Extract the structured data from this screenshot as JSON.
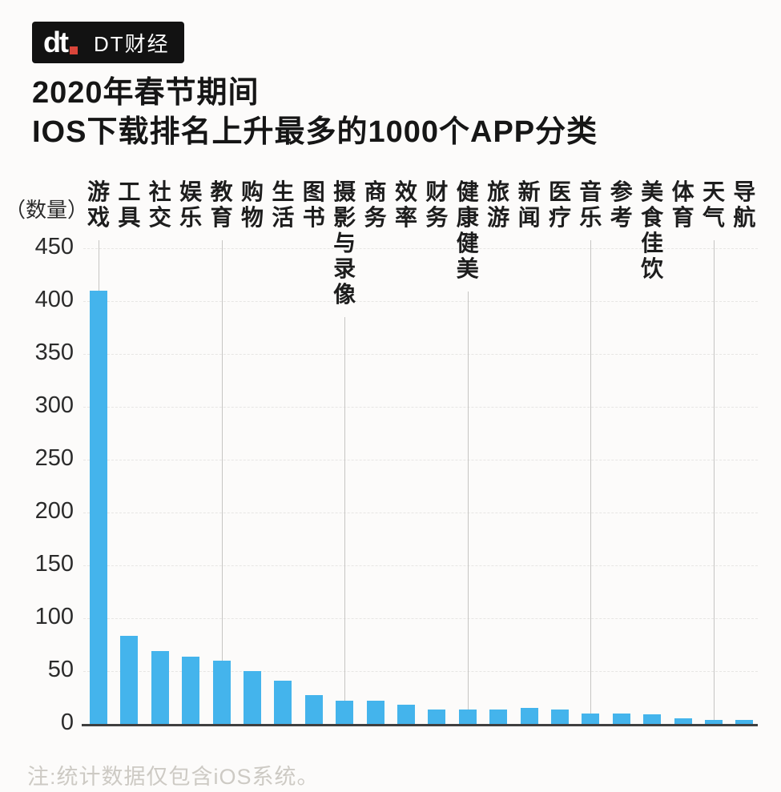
{
  "header": {
    "logo_mark_text": "dt",
    "logo_text": "DT财经"
  },
  "title": {
    "line1": "2020年春节期间",
    "line2": "IOS下载排名上升最多的1000个APP分类"
  },
  "chart_data": {
    "type": "bar",
    "title": "2020年春节期间 IOS下载排名上升最多的1000个APP分类",
    "unit_label": "（数量）",
    "categories": [
      "游戏",
      "工具",
      "社交",
      "娱乐",
      "教育",
      "购物",
      "生活",
      "图书",
      "摄影与录像",
      "商务",
      "效率",
      "财务",
      "健康健美",
      "旅游",
      "新闻",
      "医疗",
      "音乐",
      "参考",
      "美食佳饮",
      "体育",
      "天气",
      "导航"
    ],
    "values": [
      410,
      83,
      69,
      64,
      60,
      50,
      41,
      27,
      22,
      22,
      18,
      14,
      14,
      14,
      15,
      14,
      10,
      10,
      9,
      5,
      4,
      4
    ],
    "xlabel": "",
    "ylabel": "数量",
    "ylim": [
      0,
      450
    ],
    "yticks": [
      450,
      400,
      350,
      300,
      250,
      200,
      150,
      100,
      50,
      0
    ],
    "bar_color": "#44b4ec",
    "gridline_columns": [
      0,
      4,
      8,
      12,
      16,
      20
    ],
    "grid": "horizontal-faint",
    "legend_position": "none"
  },
  "footnote": "注:统计数据仅包含iOS系统。"
}
